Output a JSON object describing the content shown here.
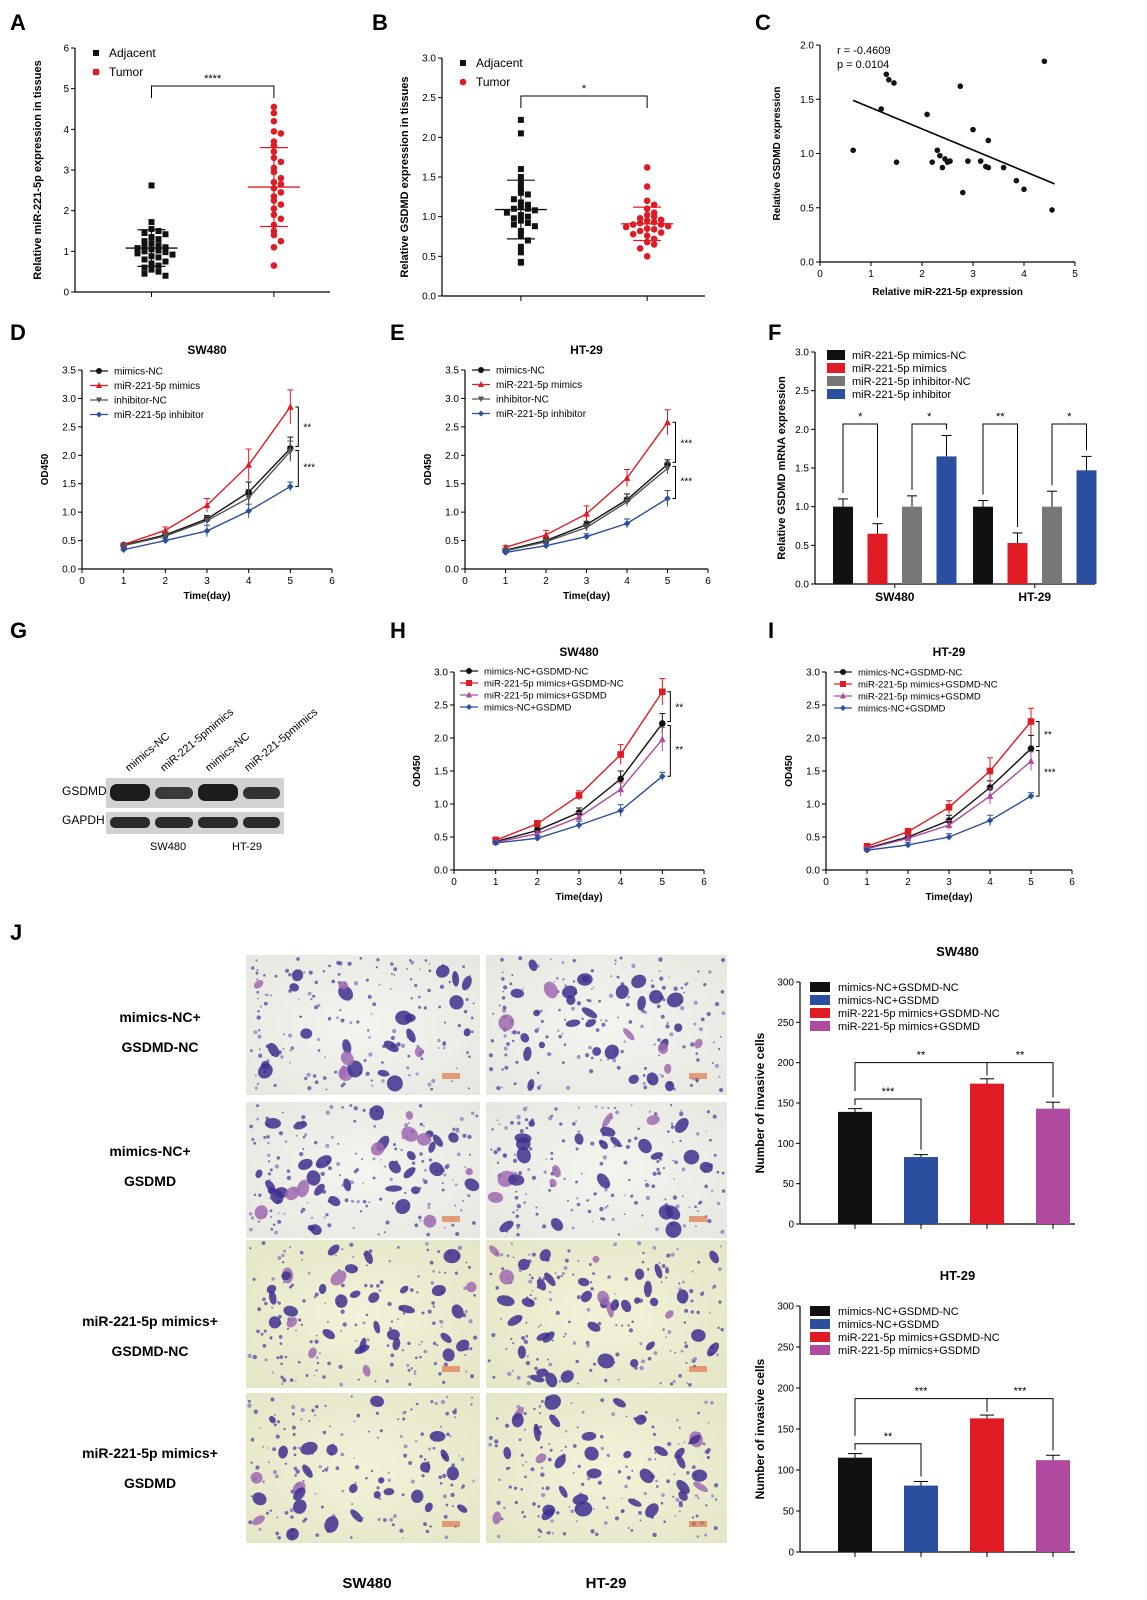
{
  "panel_letters": [
    "A",
    "B",
    "C",
    "D",
    "E",
    "F",
    "G",
    "H",
    "I",
    "J"
  ],
  "colors": {
    "black": "#111111",
    "red": "#e01b24",
    "gray": "#777777",
    "blue": "#2a4f9e",
    "purple": "#b04aa0",
    "dark_red": "#c0282d",
    "western_bg": "#cfcfcf"
  },
  "chart_data": [
    {
      "id": "A",
      "type": "scatter",
      "ylabel": "Relative miR-221-5p expression in tissues",
      "ylim": [
        0,
        6
      ],
      "yticks": [
        0,
        1,
        2,
        3,
        4,
        5,
        6
      ],
      "legend": [
        "Adjacent",
        "Tumor"
      ],
      "legend_position": "top-left",
      "significance": "****",
      "groups": [
        {
          "name": "Adjacent",
          "mean": 1.08,
          "sd": 0.45,
          "values": [
            2.62,
            1.72,
            1.55,
            1.5,
            1.45,
            1.42,
            1.35,
            1.3,
            1.25,
            1.2,
            1.15,
            1.12,
            1.1,
            1.08,
            1.05,
            1.02,
            1.0,
            0.98,
            0.95,
            0.92,
            0.88,
            0.85,
            0.8,
            0.75,
            0.7,
            0.65,
            0.6,
            0.55,
            0.5,
            0.45,
            0.4
          ]
        },
        {
          "name": "Tumor",
          "mean": 2.58,
          "sd": 0.97,
          "values": [
            4.55,
            4.4,
            4.2,
            3.95,
            3.9,
            3.7,
            3.6,
            3.45,
            3.3,
            3.2,
            3.05,
            2.95,
            2.8,
            2.7,
            2.65,
            2.55,
            2.45,
            2.35,
            2.25,
            2.15,
            2.05,
            1.9,
            1.8,
            1.65,
            1.5,
            1.4,
            1.25,
            1.1,
            0.65
          ]
        }
      ]
    },
    {
      "id": "B",
      "type": "scatter",
      "ylabel": "Relative GSDMD expression in tissues",
      "ylim": [
        0,
        3.0
      ],
      "yticks": [
        0.0,
        0.5,
        1.0,
        1.5,
        2.0,
        2.5,
        3.0
      ],
      "legend": [
        "Adjacent",
        "Tumor"
      ],
      "legend_position": "top-left",
      "significance": "*",
      "groups": [
        {
          "name": "Adjacent",
          "mean": 1.09,
          "sd": 0.37,
          "values": [
            2.22,
            2.05,
            1.6,
            1.5,
            1.42,
            1.35,
            1.3,
            1.28,
            1.22,
            1.18,
            1.15,
            1.12,
            1.1,
            1.1,
            1.08,
            1.05,
            1.02,
            1.0,
            0.98,
            0.95,
            0.92,
            0.9,
            0.88,
            0.82,
            0.75,
            0.7,
            0.62,
            0.55,
            0.43,
            0.42
          ]
        },
        {
          "name": "Tumor",
          "mean": 0.91,
          "sd": 0.21,
          "values": [
            1.62,
            1.38,
            1.2,
            1.15,
            1.1,
            1.05,
            1.02,
            1.0,
            0.98,
            0.96,
            0.95,
            0.93,
            0.92,
            0.9,
            0.9,
            0.88,
            0.87,
            0.85,
            0.84,
            0.82,
            0.8,
            0.78,
            0.76,
            0.72,
            0.68,
            0.65,
            0.6,
            0.5
          ]
        }
      ]
    },
    {
      "id": "C",
      "type": "scatter",
      "xlabel": "Relative miR-221-5p expression",
      "ylabel": "Relative GSDMD expression",
      "xlim": [
        0,
        5
      ],
      "ylim": [
        0,
        2.0
      ],
      "xticks": [
        0,
        1,
        2,
        3,
        4,
        5
      ],
      "yticks": [
        0.0,
        0.5,
        1.0,
        1.5,
        2.0
      ],
      "annotation_r": "r = -0.4609",
      "annotation_p": "p = 0.0104",
      "fit_line": [
        [
          0.65,
          1.49
        ],
        [
          4.6,
          0.72
        ]
      ],
      "points": [
        [
          0.65,
          1.03
        ],
        [
          1.2,
          1.41
        ],
        [
          1.3,
          1.73
        ],
        [
          1.35,
          1.68
        ],
        [
          1.45,
          1.65
        ],
        [
          1.5,
          0.92
        ],
        [
          2.1,
          1.36
        ],
        [
          2.2,
          0.92
        ],
        [
          2.3,
          1.03
        ],
        [
          2.35,
          0.98
        ],
        [
          2.4,
          0.87
        ],
        [
          2.45,
          0.95
        ],
        [
          2.5,
          0.92
        ],
        [
          2.55,
          0.93
        ],
        [
          2.75,
          1.62
        ],
        [
          2.8,
          0.64
        ],
        [
          2.9,
          0.93
        ],
        [
          3.0,
          1.22
        ],
        [
          3.15,
          0.93
        ],
        [
          3.25,
          0.88
        ],
        [
          3.3,
          1.12
        ],
        [
          3.3,
          0.87
        ],
        [
          3.6,
          0.87
        ],
        [
          3.85,
          0.75
        ],
        [
          4.0,
          0.67
        ],
        [
          4.4,
          1.85
        ],
        [
          4.55,
          0.48
        ]
      ]
    },
    {
      "id": "D",
      "type": "line",
      "title": "SW480",
      "xlabel": "Time(day)",
      "ylabel": "OD450",
      "xlim": [
        0,
        6
      ],
      "ylim": [
        0,
        3.5
      ],
      "xticks": [
        0,
        1,
        2,
        3,
        4,
        5,
        6
      ],
      "yticks": [
        0.0,
        0.5,
        1.0,
        1.5,
        2.0,
        2.5,
        3.0,
        3.5
      ],
      "x": [
        1,
        2,
        3,
        4,
        5
      ],
      "legend_position": "top-left",
      "sig": [
        "**",
        "***"
      ],
      "series": [
        {
          "name": "mimics-NC",
          "color": "#111111",
          "marker": "circle",
          "values": [
            0.42,
            0.6,
            0.88,
            1.35,
            2.12
          ],
          "err": [
            0.03,
            0.05,
            0.06,
            0.18,
            0.2
          ]
        },
        {
          "name": "miR-221-5p mimics",
          "color": "#e01b24",
          "marker": "triangle",
          "values": [
            0.43,
            0.68,
            1.12,
            1.83,
            2.85
          ],
          "err": [
            0.03,
            0.06,
            0.12,
            0.28,
            0.3
          ]
        },
        {
          "name": "inhibitor-NC",
          "color": "#555555",
          "marker": "tridown",
          "values": [
            0.41,
            0.58,
            0.85,
            1.25,
            2.07
          ],
          "err": [
            0.03,
            0.05,
            0.07,
            0.15,
            0.18
          ]
        },
        {
          "name": "miR-221-5p inhibitor",
          "color": "#2a4f9e",
          "marker": "diamond",
          "values": [
            0.34,
            0.5,
            0.67,
            1.02,
            1.45
          ],
          "err": [
            0.03,
            0.04,
            0.1,
            0.12,
            0.08
          ]
        }
      ]
    },
    {
      "id": "E",
      "type": "line",
      "title": "HT-29",
      "xlabel": "Time(day)",
      "ylabel": "OD450",
      "xlim": [
        0,
        6
      ],
      "ylim": [
        0,
        3.5
      ],
      "xticks": [
        0,
        1,
        2,
        3,
        4,
        5,
        6
      ],
      "yticks": [
        0.0,
        0.5,
        1.0,
        1.5,
        2.0,
        2.5,
        3.0,
        3.5
      ],
      "x": [
        1,
        2,
        3,
        4,
        5
      ],
      "legend_position": "top-left",
      "sig": [
        "***",
        "***"
      ],
      "series": [
        {
          "name": "mimics-NC",
          "color": "#111111",
          "marker": "circle",
          "values": [
            0.33,
            0.5,
            0.78,
            1.22,
            1.84
          ],
          "err": [
            0.03,
            0.05,
            0.06,
            0.1,
            0.08
          ]
        },
        {
          "name": "miR-221-5p mimics",
          "color": "#e01b24",
          "marker": "triangle",
          "values": [
            0.38,
            0.6,
            0.97,
            1.6,
            2.58
          ],
          "err": [
            0.03,
            0.08,
            0.14,
            0.15,
            0.22
          ]
        },
        {
          "name": "inhibitor-NC",
          "color": "#555555",
          "marker": "tridown",
          "values": [
            0.32,
            0.48,
            0.73,
            1.18,
            1.77
          ],
          "err": [
            0.03,
            0.05,
            0.06,
            0.08,
            0.1
          ]
        },
        {
          "name": "miR-221-5p inhibitor",
          "color": "#2a4f9e",
          "marker": "diamond",
          "values": [
            0.29,
            0.41,
            0.57,
            0.8,
            1.24
          ],
          "err": [
            0.03,
            0.04,
            0.05,
            0.08,
            0.14
          ]
        }
      ]
    },
    {
      "id": "F",
      "type": "bar",
      "ylabel": "Relative GSDMD mRNA expression",
      "ylim": [
        0,
        3.0
      ],
      "yticks": [
        0.0,
        0.5,
        1.0,
        1.5,
        2.0,
        2.5,
        3.0
      ],
      "categories": [
        "SW480",
        "HT-29"
      ],
      "legend_position": "top-left",
      "series": [
        {
          "name": "miR-221-5p mimics-NC",
          "color": "#111111",
          "values": [
            1.0,
            1.0
          ],
          "err": [
            0.1,
            0.08
          ]
        },
        {
          "name": "miR-221-5p mimics",
          "color": "#e01b24",
          "values": [
            0.65,
            0.53
          ],
          "err": [
            0.13,
            0.13
          ]
        },
        {
          "name": "miR-221-5p inhibitor-NC",
          "color": "#777777",
          "values": [
            1.0,
            1.0
          ],
          "err": [
            0.14,
            0.2
          ]
        },
        {
          "name": "miR-221-5p inhibitor",
          "color": "#2a4f9e",
          "values": [
            1.65,
            1.47
          ],
          "err": [
            0.27,
            0.18
          ]
        }
      ],
      "sig": [
        "*",
        "*",
        "**",
        "*"
      ]
    },
    {
      "id": "H",
      "type": "line",
      "title": "SW480",
      "xlabel": "Time(day)",
      "ylabel": "OD450",
      "xlim": [
        0,
        6
      ],
      "ylim": [
        0,
        3.0
      ],
      "xticks": [
        0,
        1,
        2,
        3,
        4,
        5,
        6
      ],
      "yticks": [
        0.0,
        0.5,
        1.0,
        1.5,
        2.0,
        2.5,
        3.0
      ],
      "x": [
        1,
        2,
        3,
        4,
        5
      ],
      "legend_position": "top-left",
      "sig": [
        "**",
        "**"
      ],
      "series": [
        {
          "name": "mimics-NC+GSDMD-NC",
          "color": "#111111",
          "marker": "circle",
          "values": [
            0.43,
            0.6,
            0.87,
            1.38,
            2.22
          ],
          "err": [
            0.03,
            0.04,
            0.07,
            0.12,
            0.15
          ]
        },
        {
          "name": "miR-221-5p mimics+GSDMD-NC",
          "color": "#e01b24",
          "marker": "square",
          "values": [
            0.45,
            0.7,
            1.13,
            1.75,
            2.7
          ],
          "err": [
            0.05,
            0.05,
            0.07,
            0.15,
            0.2
          ]
        },
        {
          "name": "miR-221-5p mimics+GSDMD",
          "color": "#b04aa0",
          "marker": "triangle",
          "values": [
            0.42,
            0.55,
            0.8,
            1.22,
            1.98
          ],
          "err": [
            0.03,
            0.04,
            0.07,
            0.1,
            0.18
          ]
        },
        {
          "name": "mimics-NC+GSDMD",
          "color": "#2a4f9e",
          "marker": "diamond",
          "values": [
            0.41,
            0.48,
            0.68,
            0.9,
            1.42
          ],
          "err": [
            0.03,
            0.04,
            0.06,
            0.09,
            0.06
          ]
        }
      ]
    },
    {
      "id": "I",
      "type": "line",
      "title": "HT-29",
      "xlabel": "Time(day)",
      "ylabel": "OD450",
      "xlim": [
        0,
        6
      ],
      "ylim": [
        0,
        3.0
      ],
      "xticks": [
        0,
        1,
        2,
        3,
        4,
        5,
        6
      ],
      "yticks": [
        0.0,
        0.5,
        1.0,
        1.5,
        2.0,
        2.5,
        3.0
      ],
      "x": [
        1,
        2,
        3,
        4,
        5
      ],
      "legend_position": "top-left",
      "sig": [
        "**",
        "***"
      ],
      "series": [
        {
          "name": "mimics-NC+GSDMD-NC",
          "color": "#111111",
          "marker": "circle",
          "values": [
            0.33,
            0.5,
            0.75,
            1.25,
            1.84
          ],
          "err": [
            0.03,
            0.05,
            0.08,
            0.1,
            0.2
          ]
        },
        {
          "name": "miR-221-5p mimics+GSDMD-NC",
          "color": "#e01b24",
          "marker": "square",
          "values": [
            0.36,
            0.58,
            0.95,
            1.5,
            2.25
          ],
          "err": [
            0.03,
            0.05,
            0.1,
            0.2,
            0.2
          ]
        },
        {
          "name": "miR-221-5p mimics+GSDMD",
          "color": "#b04aa0",
          "marker": "triangle",
          "values": [
            0.32,
            0.48,
            0.68,
            1.12,
            1.65
          ],
          "err": [
            0.03,
            0.04,
            0.07,
            0.12,
            0.14
          ]
        },
        {
          "name": "mimics-NC+GSDMD",
          "color": "#2a4f9e",
          "marker": "diamond",
          "values": [
            0.3,
            0.38,
            0.5,
            0.75,
            1.12
          ],
          "err": [
            0.03,
            0.04,
            0.05,
            0.08,
            0.05
          ]
        }
      ]
    },
    {
      "id": "J1",
      "type": "bar",
      "title": "SW480",
      "ylabel": "Number of invasive cells",
      "ylim": [
        0,
        300
      ],
      "yticks": [
        0,
        50,
        100,
        150,
        200,
        250,
        300
      ],
      "legend_position": "top-left",
      "series": [
        {
          "name": "mimics-NC+GSDMD-NC",
          "color": "#111111",
          "value": 139,
          "err": 4
        },
        {
          "name": "mimics-NC+GSDMD",
          "color": "#2a4f9e",
          "value": 83,
          "err": 3
        },
        {
          "name": "miR-221-5p mimics+GSDMD-NC",
          "color": "#e01b24",
          "value": 174,
          "err": 6
        },
        {
          "name": "miR-221-5p mimics+GSDMD",
          "color": "#b04aa0",
          "value": 143,
          "err": 8
        }
      ],
      "sig": [
        "***",
        "**",
        "**"
      ]
    },
    {
      "id": "J2",
      "type": "bar",
      "title": "HT-29",
      "ylabel": "Number of invasive cells",
      "ylim": [
        0,
        300
      ],
      "yticks": [
        0,
        50,
        100,
        150,
        200,
        250,
        300
      ],
      "legend_position": "top-left",
      "series": [
        {
          "name": "mimics-NC+GSDMD-NC",
          "color": "#111111",
          "value": 115,
          "err": 5
        },
        {
          "name": "mimics-NC+GSDMD",
          "color": "#2a4f9e",
          "value": 81,
          "err": 5
        },
        {
          "name": "miR-221-5p mimics+GSDMD-NC",
          "color": "#e01b24",
          "value": 163,
          "err": 4
        },
        {
          "name": "miR-221-5p mimics+GSDMD",
          "color": "#b04aa0",
          "value": 112,
          "err": 6
        }
      ],
      "sig": [
        "**",
        "***",
        "***"
      ]
    }
  ],
  "western_blot": {
    "lanes": [
      "mimics-NC",
      "miR-221-5pmimics",
      "mimics-NC",
      "miR-221-5pmimics"
    ],
    "rows": [
      "GSDMD",
      "GAPDH"
    ],
    "groups": [
      "SW480",
      "HT-29"
    ]
  },
  "invasion": {
    "row_labels": [
      [
        "mimics-NC+",
        "GSDMD-NC"
      ],
      [
        "mimics-NC+",
        "GSDMD"
      ],
      [
        "miR-221-5p mimics+",
        "GSDMD-NC"
      ],
      [
        "miR-221-5p mimics+",
        "GSDMD"
      ]
    ],
    "col_labels": [
      "SW480",
      "HT-29"
    ]
  }
}
